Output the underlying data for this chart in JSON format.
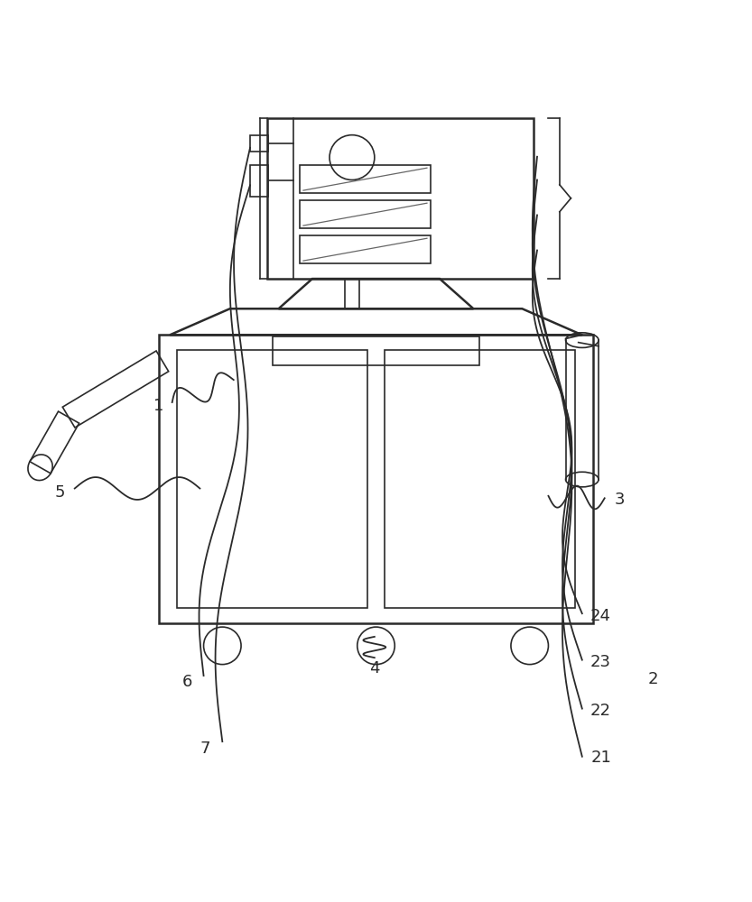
{
  "bg_color": "#ffffff",
  "line_color": "#2a2a2a",
  "line_width": 1.8,
  "fig_width": 8.33,
  "fig_height": 10.0,
  "dpi": 100
}
